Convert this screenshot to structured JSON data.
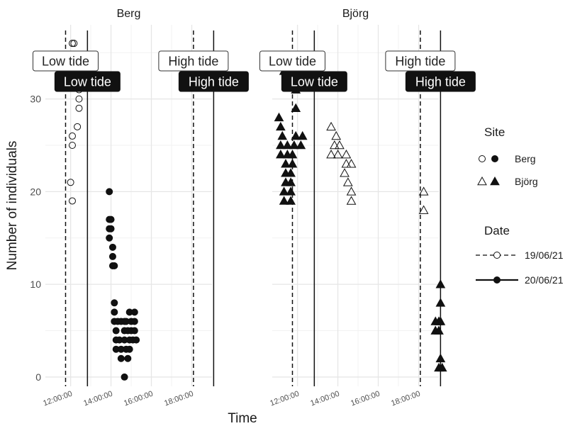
{
  "chart_data": {
    "type": "scatter",
    "facets": [
      "Berg",
      "Björg"
    ],
    "xlabel": "Time",
    "ylabel": "Number of individuals",
    "xticks": [
      "12:00:00",
      "14:00:00",
      "16:00:00",
      "18:00:00"
    ],
    "xlim": [
      "10:45",
      "19:00"
    ],
    "yticks": [
      0,
      10,
      20,
      30
    ],
    "ylim": [
      -1,
      38
    ],
    "grid": true,
    "legend": {
      "position": "right",
      "site_title": "Site",
      "site_entries": [
        "Berg",
        "Björg"
      ],
      "date_title": "Date",
      "date_entries": [
        "19/06/21",
        "20/06/21"
      ]
    },
    "tide_lines": [
      {
        "facet": "Berg",
        "date": "19/06/21",
        "tide": "Low tide",
        "time": "11:45"
      },
      {
        "facet": "Berg",
        "date": "20/06/21",
        "tide": "Low tide",
        "time": "12:50"
      },
      {
        "facet": "Berg",
        "date": "19/06/21",
        "tide": "High tide",
        "time": "18:05"
      },
      {
        "facet": "Berg",
        "date": "20/06/21",
        "tide": "High tide",
        "time": "19:05"
      },
      {
        "facet": "Björg",
        "date": "19/06/21",
        "tide": "Low tide",
        "time": "11:45"
      },
      {
        "facet": "Björg",
        "date": "20/06/21",
        "tide": "Low tide",
        "time": "12:50"
      },
      {
        "facet": "Björg",
        "date": "19/06/21",
        "tide": "High tide",
        "time": "18:05"
      },
      {
        "facet": "Björg",
        "date": "20/06/21",
        "tide": "High tide",
        "time": "19:05"
      }
    ],
    "series": [
      {
        "facet": "Berg",
        "site": "Berg",
        "date": "19/06/21",
        "points": [
          [
            "12:05",
            36
          ],
          [
            "12:10",
            36
          ],
          [
            "12:15",
            33
          ],
          [
            "12:20",
            32
          ],
          [
            "12:25",
            31
          ],
          [
            "12:25",
            30
          ],
          [
            "12:25",
            29
          ],
          [
            "12:20",
            27
          ],
          [
            "12:05",
            26
          ],
          [
            "12:05",
            25
          ],
          [
            "12:00",
            21
          ],
          [
            "12:05",
            19
          ]
        ]
      },
      {
        "facet": "Berg",
        "site": "Berg",
        "date": "20/06/21",
        "points": [
          [
            "13:55",
            20
          ],
          [
            "13:55",
            17
          ],
          [
            "14:00",
            17
          ],
          [
            "13:55",
            16
          ],
          [
            "14:00",
            16
          ],
          [
            "13:55",
            15
          ],
          [
            "14:05",
            14
          ],
          [
            "14:05",
            13
          ],
          [
            "14:05",
            12
          ],
          [
            "14:10",
            12
          ],
          [
            "14:10",
            8
          ],
          [
            "14:10",
            7
          ],
          [
            "14:10",
            6
          ],
          [
            "14:20",
            6
          ],
          [
            "14:30",
            6
          ],
          [
            "14:40",
            6
          ],
          [
            "14:45",
            6
          ],
          [
            "15:00",
            6
          ],
          [
            "15:10",
            6
          ],
          [
            "14:15",
            5
          ],
          [
            "14:40",
            5
          ],
          [
            "14:50",
            5
          ],
          [
            "15:00",
            5
          ],
          [
            "15:10",
            5
          ],
          [
            "14:15",
            4
          ],
          [
            "14:25",
            4
          ],
          [
            "14:40",
            4
          ],
          [
            "14:55",
            4
          ],
          [
            "15:05",
            4
          ],
          [
            "15:15",
            4
          ],
          [
            "14:15",
            3
          ],
          [
            "14:30",
            3
          ],
          [
            "14:45",
            3
          ],
          [
            "14:55",
            3
          ],
          [
            "14:30",
            2
          ],
          [
            "14:50",
            2
          ],
          [
            "14:40",
            0
          ],
          [
            "14:55",
            7
          ],
          [
            "15:10",
            7
          ]
        ]
      },
      {
        "facet": "Björg",
        "site": "Björg",
        "date": "19/06/21",
        "points": [
          [
            "13:40",
            27
          ],
          [
            "13:55",
            26
          ],
          [
            "13:50",
            25
          ],
          [
            "14:05",
            25
          ],
          [
            "13:40",
            24
          ],
          [
            "14:00",
            24
          ],
          [
            "14:25",
            24
          ],
          [
            "14:25",
            23
          ],
          [
            "14:40",
            23
          ],
          [
            "14:20",
            22
          ],
          [
            "14:30",
            21
          ],
          [
            "14:40",
            20
          ],
          [
            "14:40",
            19
          ],
          [
            "18:15",
            20
          ],
          [
            "18:15",
            18
          ]
        ]
      },
      {
        "facet": "Björg",
        "site": "Björg",
        "date": "20/06/21",
        "points": [
          [
            "11:20",
            33
          ],
          [
            "11:55",
            31
          ],
          [
            "11:55",
            29
          ],
          [
            "11:05",
            28
          ],
          [
            "11:10",
            27
          ],
          [
            "11:15",
            26
          ],
          [
            "11:55",
            26
          ],
          [
            "12:15",
            26
          ],
          [
            "11:10",
            25
          ],
          [
            "11:30",
            25
          ],
          [
            "11:50",
            25
          ],
          [
            "12:10",
            25
          ],
          [
            "11:10",
            24
          ],
          [
            "11:30",
            24
          ],
          [
            "11:45",
            24
          ],
          [
            "11:25",
            23
          ],
          [
            "11:45",
            23
          ],
          [
            "11:25",
            22
          ],
          [
            "11:40",
            22
          ],
          [
            "11:25",
            21
          ],
          [
            "11:40",
            21
          ],
          [
            "11:20",
            20
          ],
          [
            "11:40",
            20
          ],
          [
            "11:20",
            19
          ],
          [
            "11:40",
            19
          ],
          [
            "19:05",
            10
          ],
          [
            "19:05",
            8
          ],
          [
            "19:00",
            6
          ],
          [
            "19:05",
            6
          ],
          [
            "18:50",
            6
          ],
          [
            "18:50",
            5
          ],
          [
            "19:00",
            5
          ],
          [
            "19:05",
            2
          ],
          [
            "19:00",
            1
          ],
          [
            "19:10",
            1
          ]
        ]
      }
    ]
  }
}
